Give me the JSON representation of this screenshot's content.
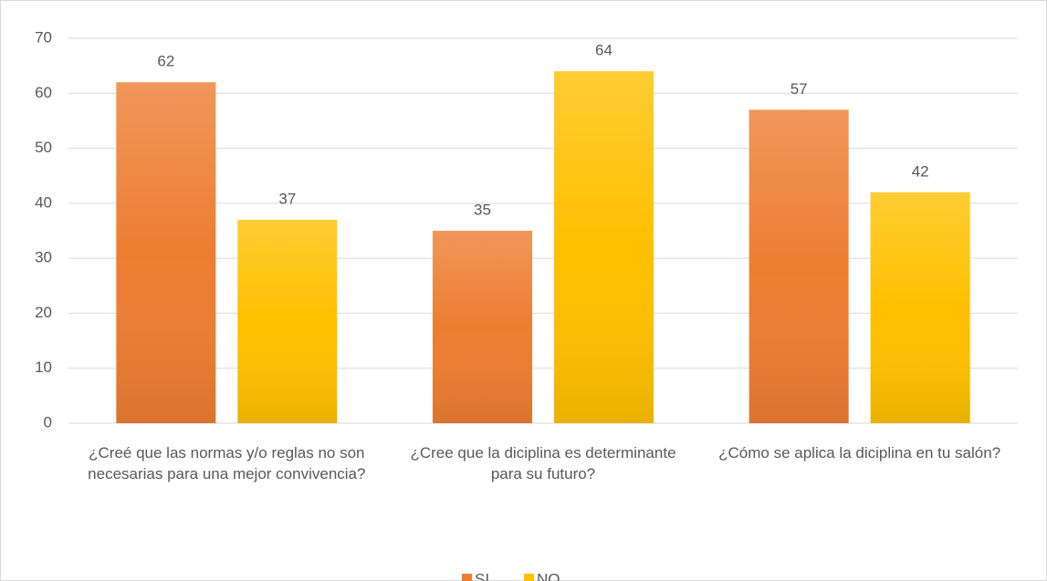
{
  "chart_data": {
    "type": "bar",
    "categories": [
      "¿Creé que las normas y/o reglas no son necesarias para una mejor convivencia?",
      "¿Cree que la diciplina es determinante para su futuro?",
      "¿Cómo se aplica la diciplina en tu salón?"
    ],
    "series": [
      {
        "name": "SI",
        "color": "#ed7d31",
        "values": [
          62,
          35,
          57
        ]
      },
      {
        "name": "NO",
        "color": "#ffc000",
        "values": [
          37,
          64,
          42
        ]
      }
    ],
    "ylim": [
      0,
      70
    ],
    "yticks": [
      0,
      10,
      20,
      30,
      40,
      50,
      60,
      70
    ],
    "grid": true,
    "legend": "bottom"
  }
}
